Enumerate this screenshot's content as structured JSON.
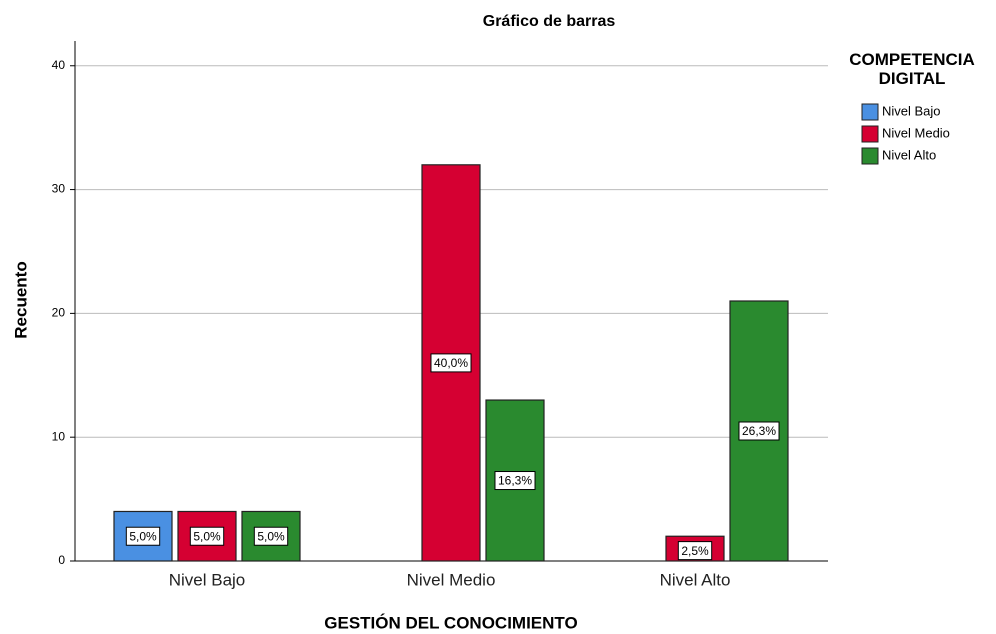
{
  "chart_data": {
    "type": "bar",
    "title": "Gráfico de barras",
    "x_label": "GESTIÓN DEL CONOCIMIENTO",
    "y_label": "Recuento",
    "legend_title": "COMPETENCIA DIGITAL",
    "categories": [
      "Nivel Bajo",
      "Nivel Medio",
      "Nivel Alto"
    ],
    "series": [
      {
        "name": "Nivel Bajo",
        "color": "#4a90e2",
        "values": [
          4,
          null,
          null
        ],
        "percent_labels": [
          "5,0%",
          null,
          null
        ]
      },
      {
        "name": "Nivel Medio",
        "color": "#d50032",
        "values": [
          4,
          32,
          2
        ],
        "percent_labels": [
          "5,0%",
          "40,0%",
          "2,5%"
        ]
      },
      {
        "name": "Nivel Alto",
        "color": "#2a8a2f",
        "values": [
          4,
          13,
          21
        ],
        "percent_labels": [
          "5,0%",
          "16,3%",
          "26,3%"
        ]
      }
    ],
    "ylim": [
      0,
      42
    ],
    "yticks": [
      0,
      10,
      20,
      30,
      40
    ],
    "grid": true,
    "legend": "right"
  }
}
